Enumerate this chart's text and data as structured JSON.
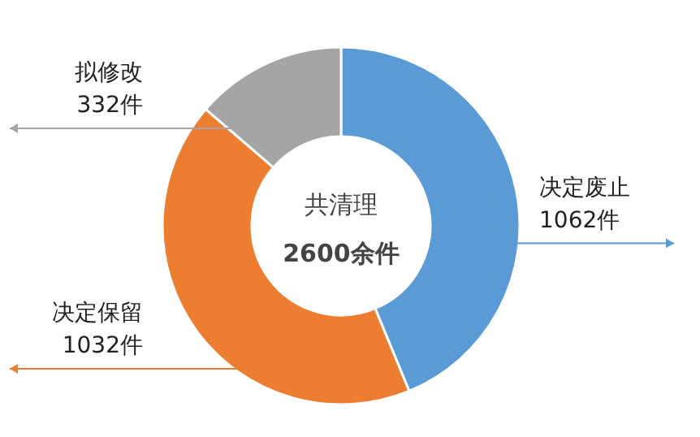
{
  "chart_data": {
    "type": "donut",
    "categories": [
      "决定废止",
      "决定保留",
      "拟修改"
    ],
    "values": [
      1062,
      1032,
      332
    ],
    "value_labels": [
      "1062件",
      "1032件",
      "332件"
    ],
    "colors": [
      "#5b9bd5",
      "#ed7d31",
      "#a5a5a5"
    ],
    "annotations": [
      "共清理",
      "2600余件"
    ]
  }
}
